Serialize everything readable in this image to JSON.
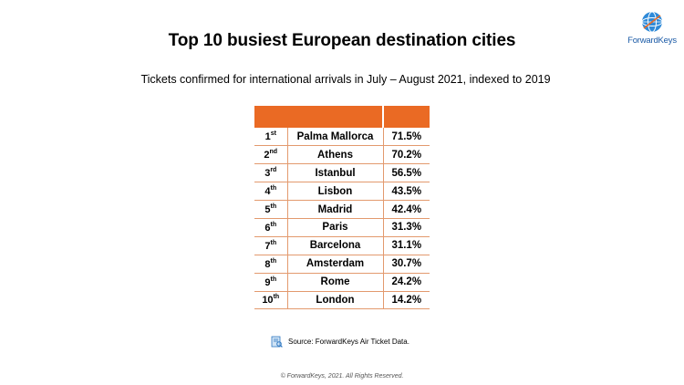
{
  "header": {
    "title": "Top 10 busiest European destination cities",
    "subtitle": "Tickets confirmed for international arrivals in July – August 2021, indexed to 2019"
  },
  "logo": {
    "text": "ForwardKeys",
    "icon": "globe-icon",
    "color": "#1a5aa6"
  },
  "table": {
    "header_color": "#ea6a24",
    "rows": [
      {
        "rank": "1",
        "suffix": "st",
        "city": "Palma Mallorca",
        "value": "71.5%"
      },
      {
        "rank": "2",
        "suffix": "nd",
        "city": "Athens",
        "value": "70.2%"
      },
      {
        "rank": "3",
        "suffix": "rd",
        "city": "Istanbul",
        "value": "56.5%"
      },
      {
        "rank": "4",
        "suffix": "th",
        "city": "Lisbon",
        "value": "43.5%"
      },
      {
        "rank": "5",
        "suffix": "th",
        "city": "Madrid",
        "value": "42.4%"
      },
      {
        "rank": "6",
        "suffix": "th",
        "city": "Paris",
        "value": "31.3%"
      },
      {
        "rank": "7",
        "suffix": "th",
        "city": "Barcelona",
        "value": "31.1%"
      },
      {
        "rank": "8",
        "suffix": "th",
        "city": "Amsterdam",
        "value": "30.7%"
      },
      {
        "rank": "9",
        "suffix": "th",
        "city": "Rome",
        "value": "24.2%"
      },
      {
        "rank": "10",
        "suffix": "th",
        "city": "London",
        "value": "14.2%"
      }
    ]
  },
  "source": {
    "text": "Source: ForwardKeys Air Ticket Data.",
    "icon": "data-source-icon"
  },
  "footer": {
    "copyright": "© ForwardKeys, 2021. All Rights Reserved."
  }
}
